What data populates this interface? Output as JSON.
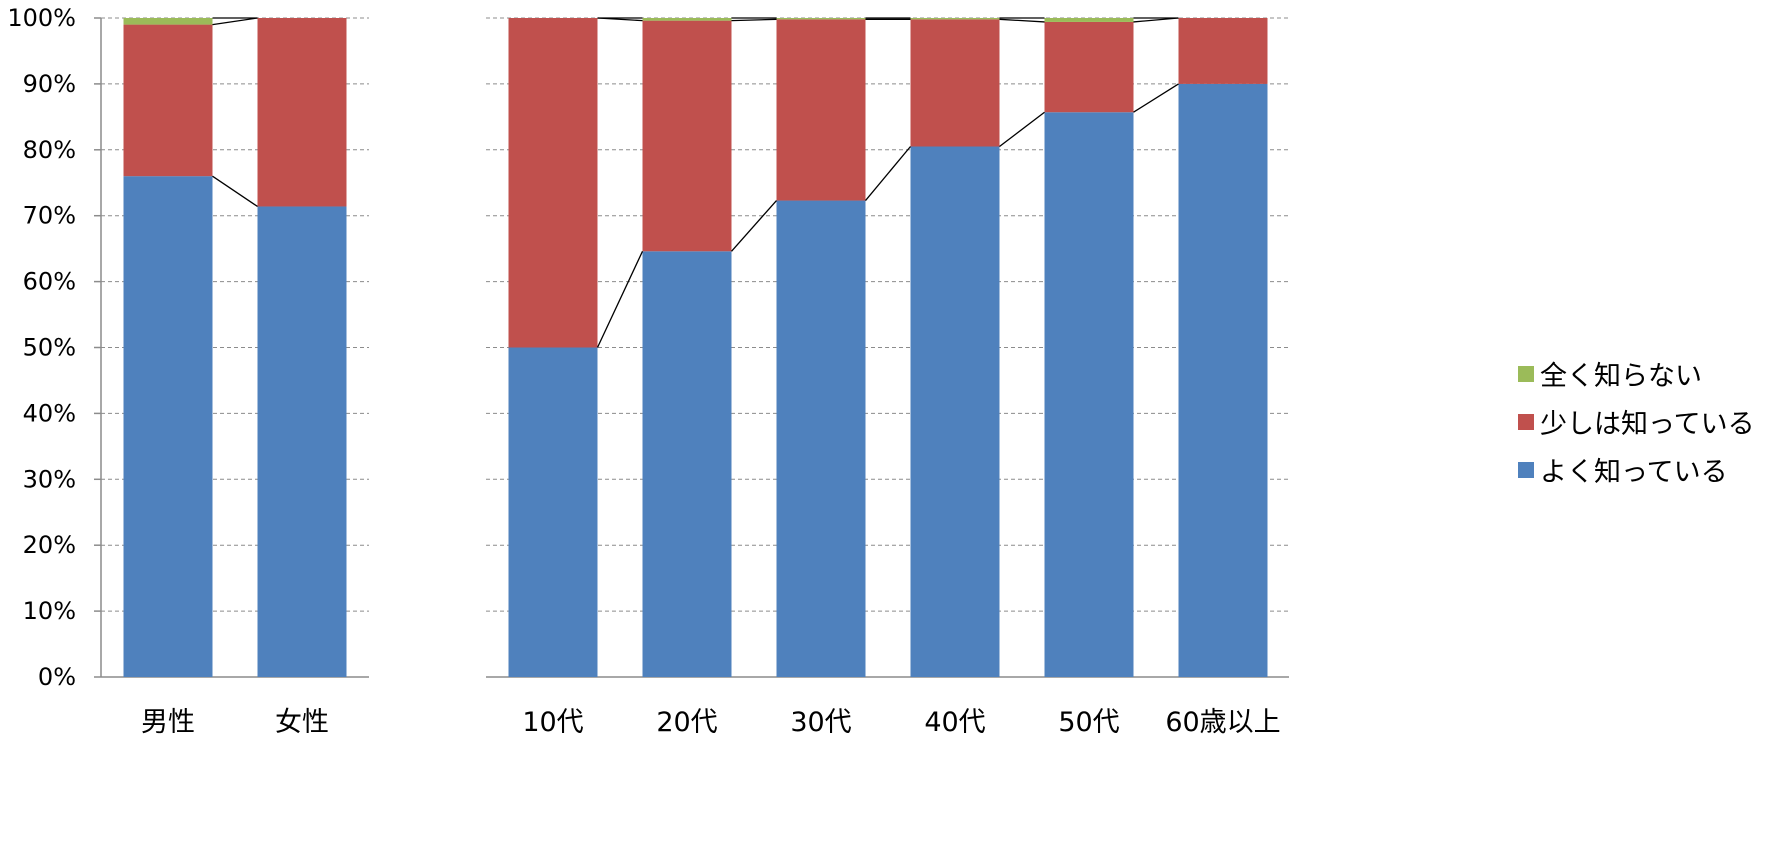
{
  "colors": {
    "series": [
      "#4f81bd",
      "#c0504d",
      "#9bbb59"
    ],
    "grid": "#8c8c8c",
    "axis": "#8c8c8c",
    "connector": "#000000"
  },
  "legend": {
    "placement": "right",
    "order": [
      2,
      1,
      0
    ]
  },
  "chart_data": [
    {
      "type": "bar",
      "stacked": true,
      "percent": true,
      "categories": [
        "男性",
        "女性"
      ],
      "series": [
        {
          "name": "よく知っている",
          "values": [
            76,
            71.4
          ]
        },
        {
          "name": "少しは知っている",
          "values": [
            23,
            28.6
          ]
        },
        {
          "name": "全く知らない",
          "values": [
            1,
            0
          ]
        }
      ],
      "ylim": [
        0,
        100
      ],
      "yticks": [
        "0%",
        "10%",
        "20%",
        "30%",
        "40%",
        "50%",
        "60%",
        "70%",
        "80%",
        "90%",
        "100%"
      ],
      "grid": true,
      "series_lines": true
    },
    {
      "type": "bar",
      "stacked": true,
      "percent": true,
      "categories": [
        "10代",
        "20代",
        "30代",
        "40代",
        "50代",
        "60歳以上"
      ],
      "series": [
        {
          "name": "よく知っている",
          "values": [
            50,
            64.6,
            72.3,
            80.5,
            85.7,
            90
          ]
        },
        {
          "name": "少しは知っている",
          "values": [
            50,
            35,
            27.5,
            19.3,
            13.7,
            10
          ]
        },
        {
          "name": "全く知らない",
          "values": [
            0,
            0.4,
            0.2,
            0.2,
            0.6,
            0
          ]
        }
      ],
      "ylim": [
        0,
        100
      ],
      "grid": true,
      "series_lines": true
    }
  ]
}
